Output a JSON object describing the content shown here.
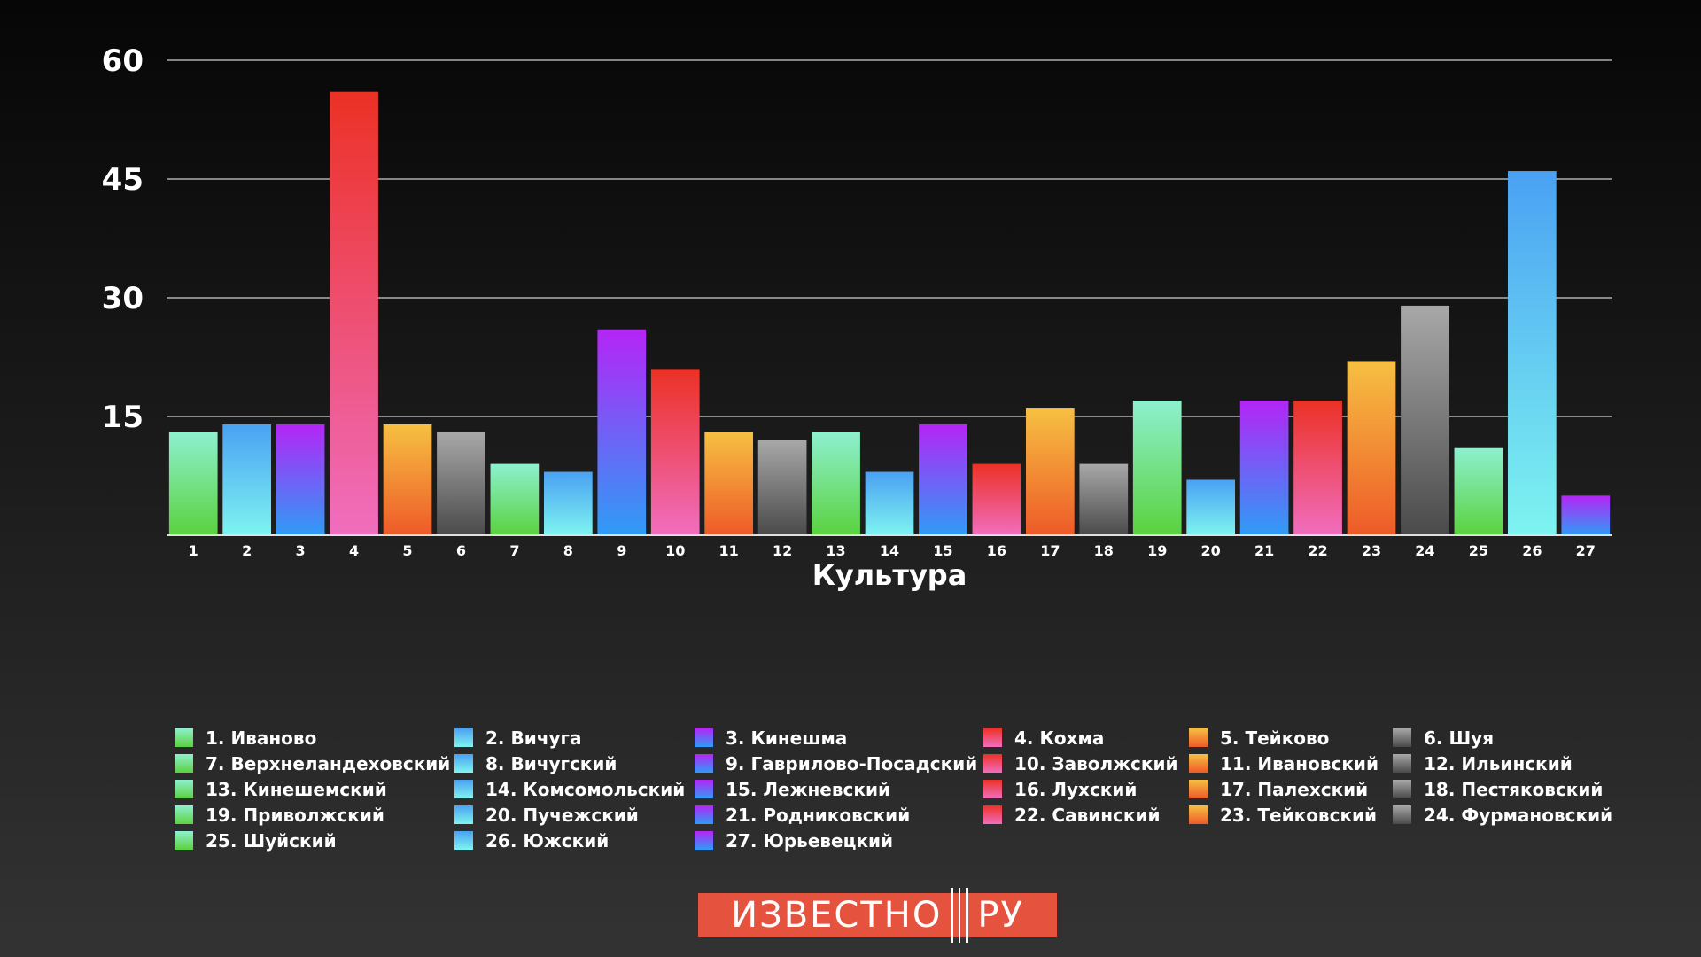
{
  "colors": {
    "green": [
      "#8ef0cf",
      "#5ad23e"
    ],
    "cyan": [
      "#4aa1f3",
      "#7ef4f0"
    ],
    "purple": [
      "#b425f6",
      "#2e9cf6"
    ],
    "red": [
      "#ec3125",
      "#f06ebf"
    ],
    "orange": [
      "#f6c042",
      "#ee5a28"
    ],
    "gray": [
      "#a8a8a8",
      "#4a4a4a"
    ]
  },
  "chart_data": {
    "type": "bar",
    "xlabel": "Культура",
    "ylabel": "",
    "ylim": [
      0,
      60
    ],
    "yticks": [
      60,
      45,
      30,
      15
    ],
    "grid": true,
    "legend_placement": "bottom",
    "categories": [
      "1",
      "2",
      "3",
      "4",
      "5",
      "6",
      "7",
      "8",
      "9",
      "10",
      "11",
      "12",
      "13",
      "14",
      "15",
      "16",
      "17",
      "18",
      "19",
      "20",
      "21",
      "22",
      "23",
      "24",
      "25",
      "26",
      "27"
    ],
    "values": [
      13,
      14,
      14,
      56,
      14,
      13,
      9,
      8,
      26,
      21,
      13,
      12,
      13,
      8,
      14,
      9,
      16,
      9,
      17,
      7,
      17,
      17,
      22,
      29,
      11,
      46,
      5
    ],
    "bar_colors": [
      "green",
      "cyan",
      "purple",
      "red",
      "orange",
      "gray",
      "green",
      "cyan",
      "purple",
      "red",
      "orange",
      "gray",
      "green",
      "cyan",
      "purple",
      "red",
      "orange",
      "gray",
      "green",
      "cyan",
      "purple",
      "red",
      "orange",
      "gray",
      "green",
      "cyan",
      "purple"
    ],
    "legend": [
      "1. Иваново",
      "2. Вичуга",
      "3. Кинешма",
      "4. Кохма",
      "5. Тейково",
      "6. Шуя",
      "7. Верхнеландеховский",
      "8. Вичугский",
      "9. Гаврилово-Посадский",
      "10. Заволжский",
      "11. Ивановский",
      "12. Ильинский",
      "13. Кинешемский",
      "14. Комсомольский",
      "15. Лежневский",
      "16. Лухский",
      "17. Палехский",
      "18. Пестяковский",
      "19. Приволжский",
      "20. Пучежский",
      "21. Родниковский",
      "22. Савинский",
      "23. Тейковский",
      "24. Фурмановский",
      "25. Шуйский",
      "26. Южский",
      "27. Юрьевецкий"
    ]
  },
  "logo": {
    "left_text": "ИЗВЕСТНО",
    "right_text": "РУ"
  }
}
